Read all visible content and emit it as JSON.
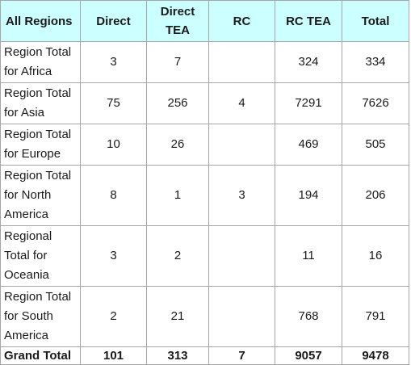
{
  "table": {
    "headers": [
      "All Regions",
      "Direct",
      "Direct TEA",
      "RC",
      "RC TEA",
      "Total"
    ],
    "rows": [
      {
        "region": "Region Total for Africa",
        "direct": "3",
        "direct_tea": "7",
        "rc": "",
        "rc_tea": "324",
        "total": "334"
      },
      {
        "region": "Region Total for Asia",
        "direct": "75",
        "direct_tea": "256",
        "rc": "4",
        "rc_tea": "7291",
        "total": "7626"
      },
      {
        "region": "Region Total for Europe",
        "direct": "10",
        "direct_tea": "26",
        "rc": "",
        "rc_tea": "469",
        "total": "505"
      },
      {
        "region": "Region Total for North America",
        "direct": "8",
        "direct_tea": "1",
        "rc": "3",
        "rc_tea": "194",
        "total": "206"
      },
      {
        "region": "Regional Total for Oceania",
        "direct": "3",
        "direct_tea": "2",
        "rc": "",
        "rc_tea": "11",
        "total": "16"
      },
      {
        "region": "Region Total for South America",
        "direct": "2",
        "direct_tea": "21",
        "rc": "",
        "rc_tea": "768",
        "total": "791"
      }
    ],
    "grand_total": {
      "label": "Grand Total",
      "direct": "101",
      "direct_tea": "313",
      "rc": "7",
      "rc_tea": "9057",
      "total": "9478"
    }
  },
  "colors": {
    "header_bg": "#ccffff",
    "grid": "#a6a6a6",
    "text": "#1a1a1a"
  }
}
